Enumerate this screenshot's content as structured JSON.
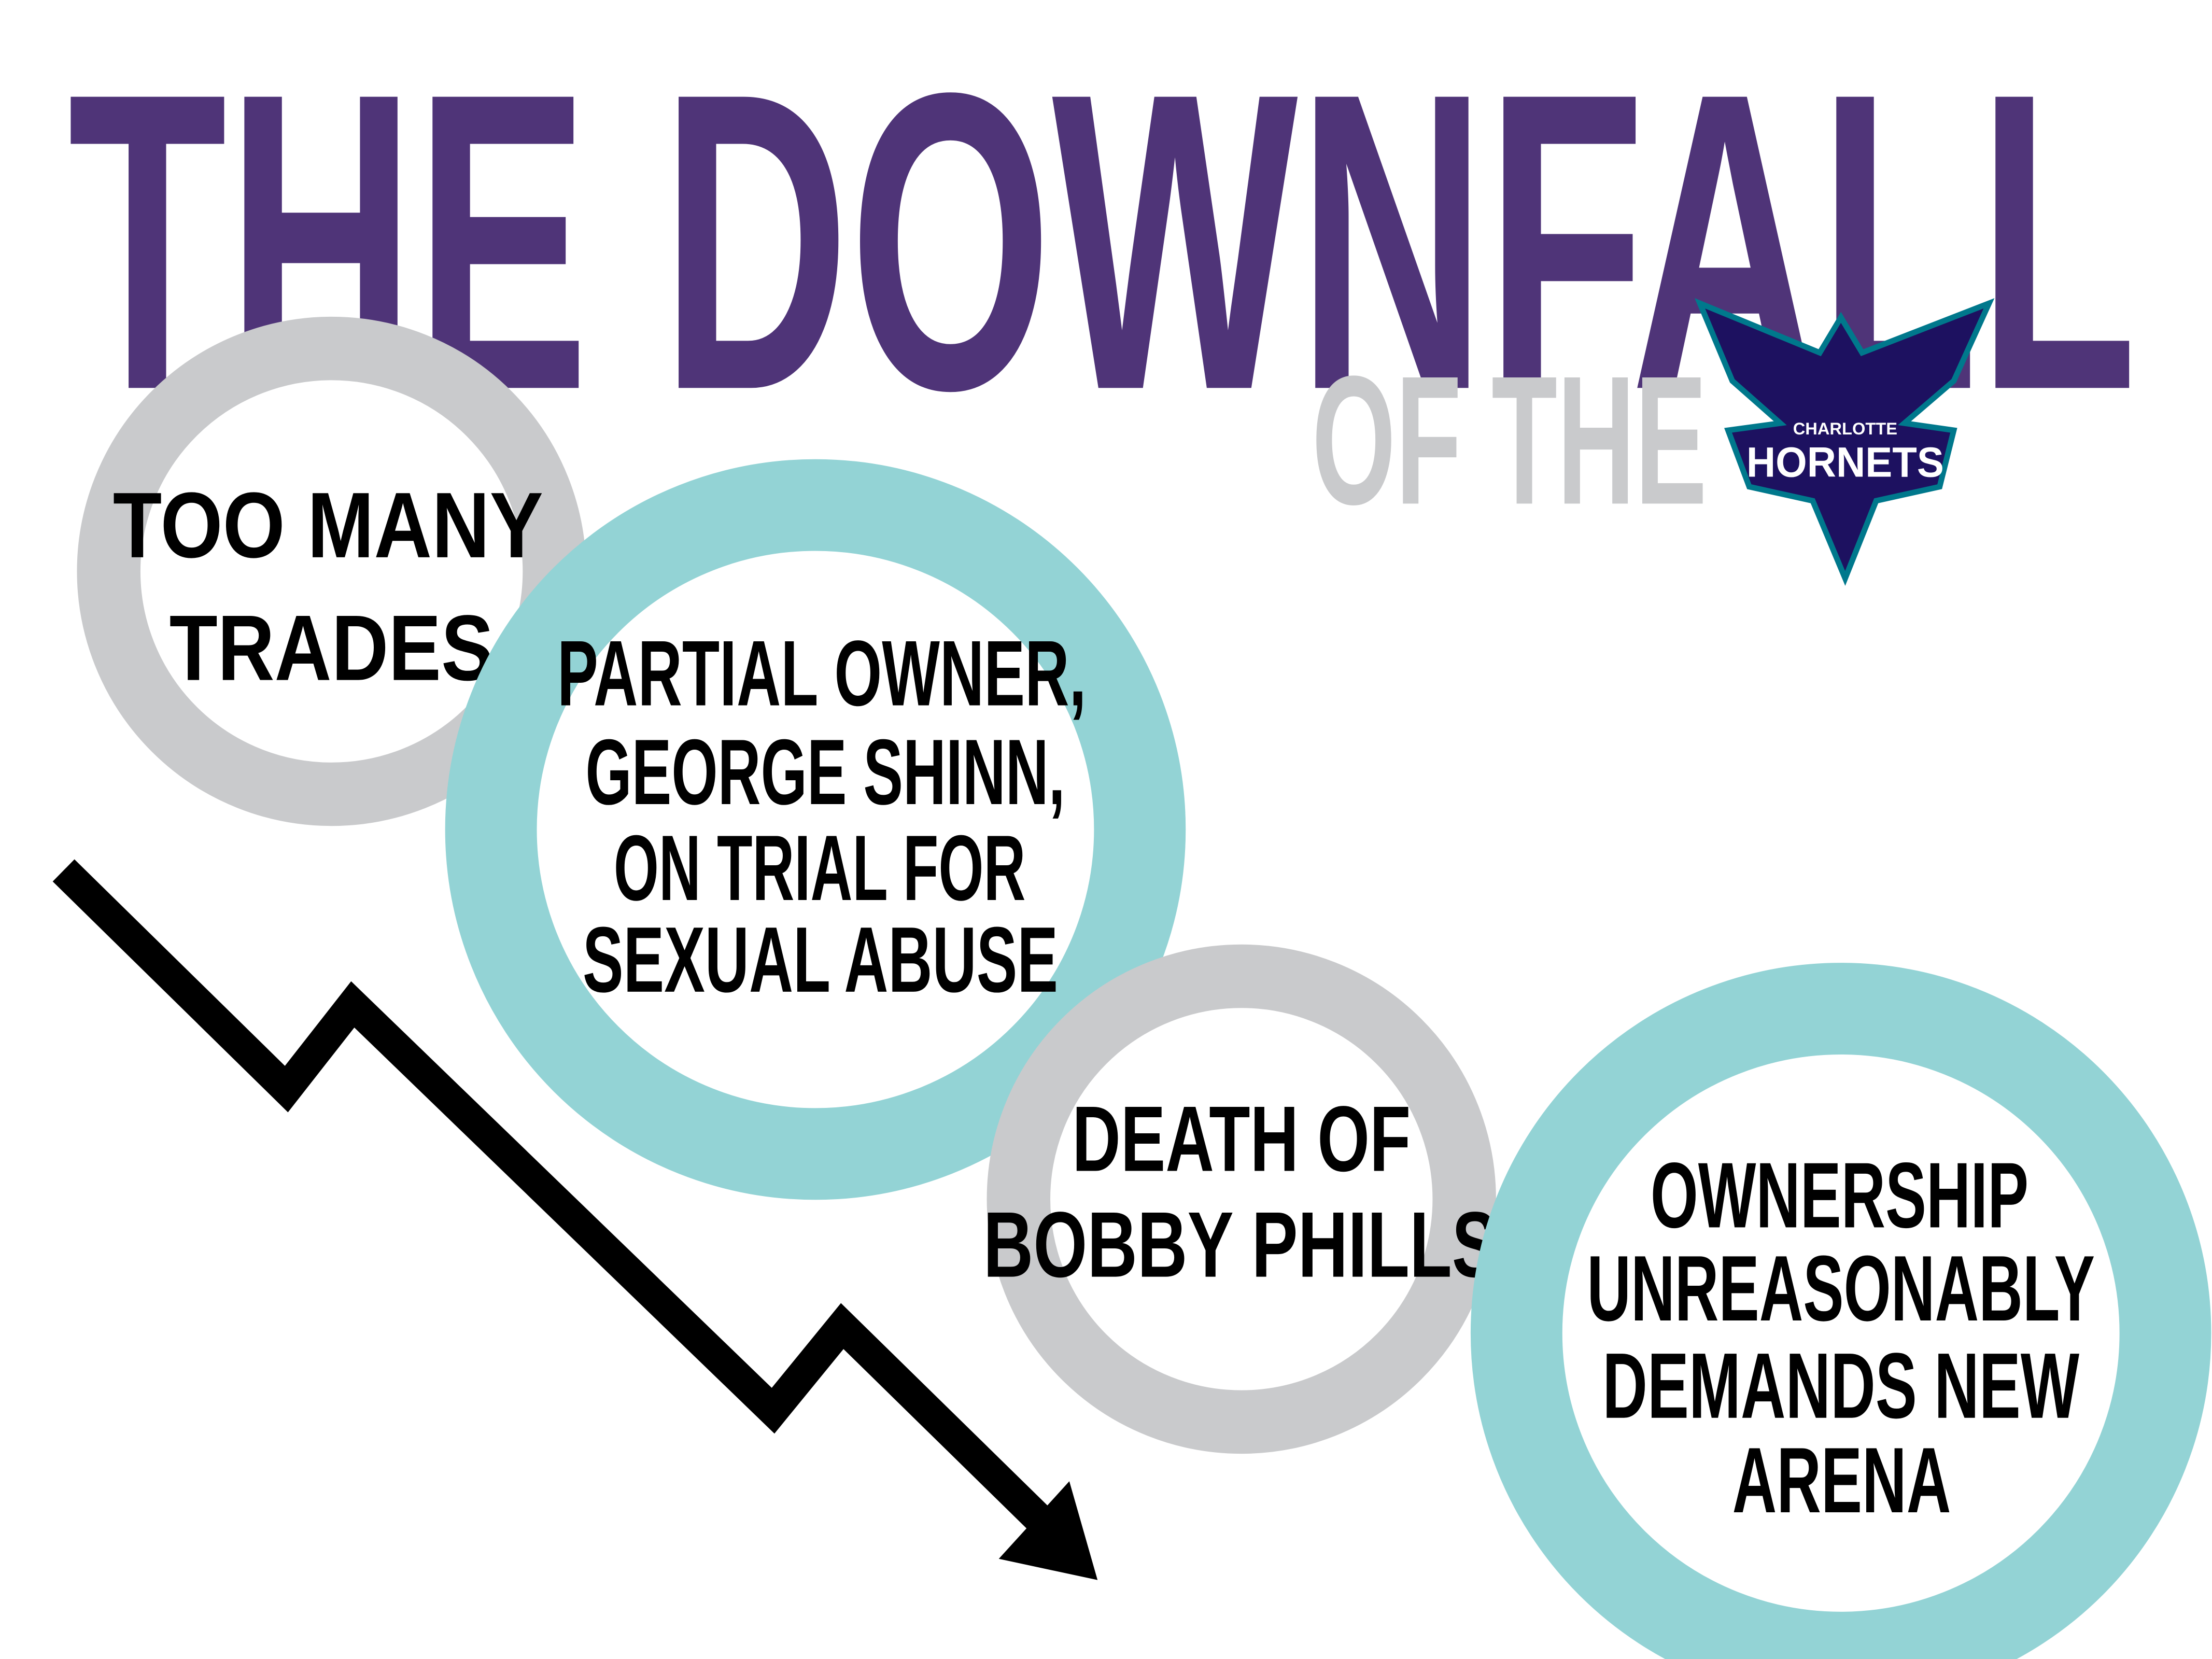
{
  "header": {
    "title": "THE DOWNFALL",
    "subtitle": "OF THE"
  },
  "logo": {
    "top": "CHARLOTTE",
    "name": "HORNETS"
  },
  "circles": [
    {
      "lines": [
        "TOO MANY",
        "TRADES"
      ]
    },
    {
      "lines": [
        "PARTIAL OWNER,",
        "GEORGE SHINN,",
        "ON TRIAL FOR",
        "SEXUAL ABUSE"
      ]
    },
    {
      "lines": [
        "DEATH OF",
        "BOBBY PHILLS"
      ]
    },
    {
      "lines": [
        "OWNERSHIP",
        "UNREASONABLY",
        "DEMANDS NEW",
        "ARENA"
      ]
    }
  ]
}
